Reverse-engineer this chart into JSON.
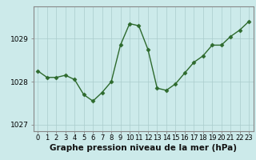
{
  "x": [
    0,
    1,
    2,
    3,
    4,
    5,
    6,
    7,
    8,
    9,
    10,
    11,
    12,
    13,
    14,
    15,
    16,
    17,
    18,
    19,
    20,
    21,
    22,
    23
  ],
  "y": [
    1028.25,
    1028.1,
    1028.1,
    1028.15,
    1028.05,
    1027.7,
    1027.55,
    1027.75,
    1028.0,
    1028.85,
    1029.35,
    1029.3,
    1028.75,
    1027.85,
    1027.8,
    1027.95,
    1028.2,
    1028.45,
    1028.6,
    1028.85,
    1028.85,
    1029.05,
    1029.2,
    1029.4
  ],
  "line_color": "#2d6a2d",
  "marker": "D",
  "marker_size": 2.5,
  "bg_color": "#cceaea",
  "grid_color": "#aacccc",
  "xlabel": "Graphe pression niveau de la mer (hPa)",
  "xlabel_fontsize": 7.5,
  "yticks": [
    1027,
    1028,
    1029
  ],
  "ylim": [
    1026.85,
    1029.75
  ],
  "xlim": [
    -0.5,
    23.5
  ],
  "tick_label_fontsize": 6.5,
  "spine_color": "#888888"
}
